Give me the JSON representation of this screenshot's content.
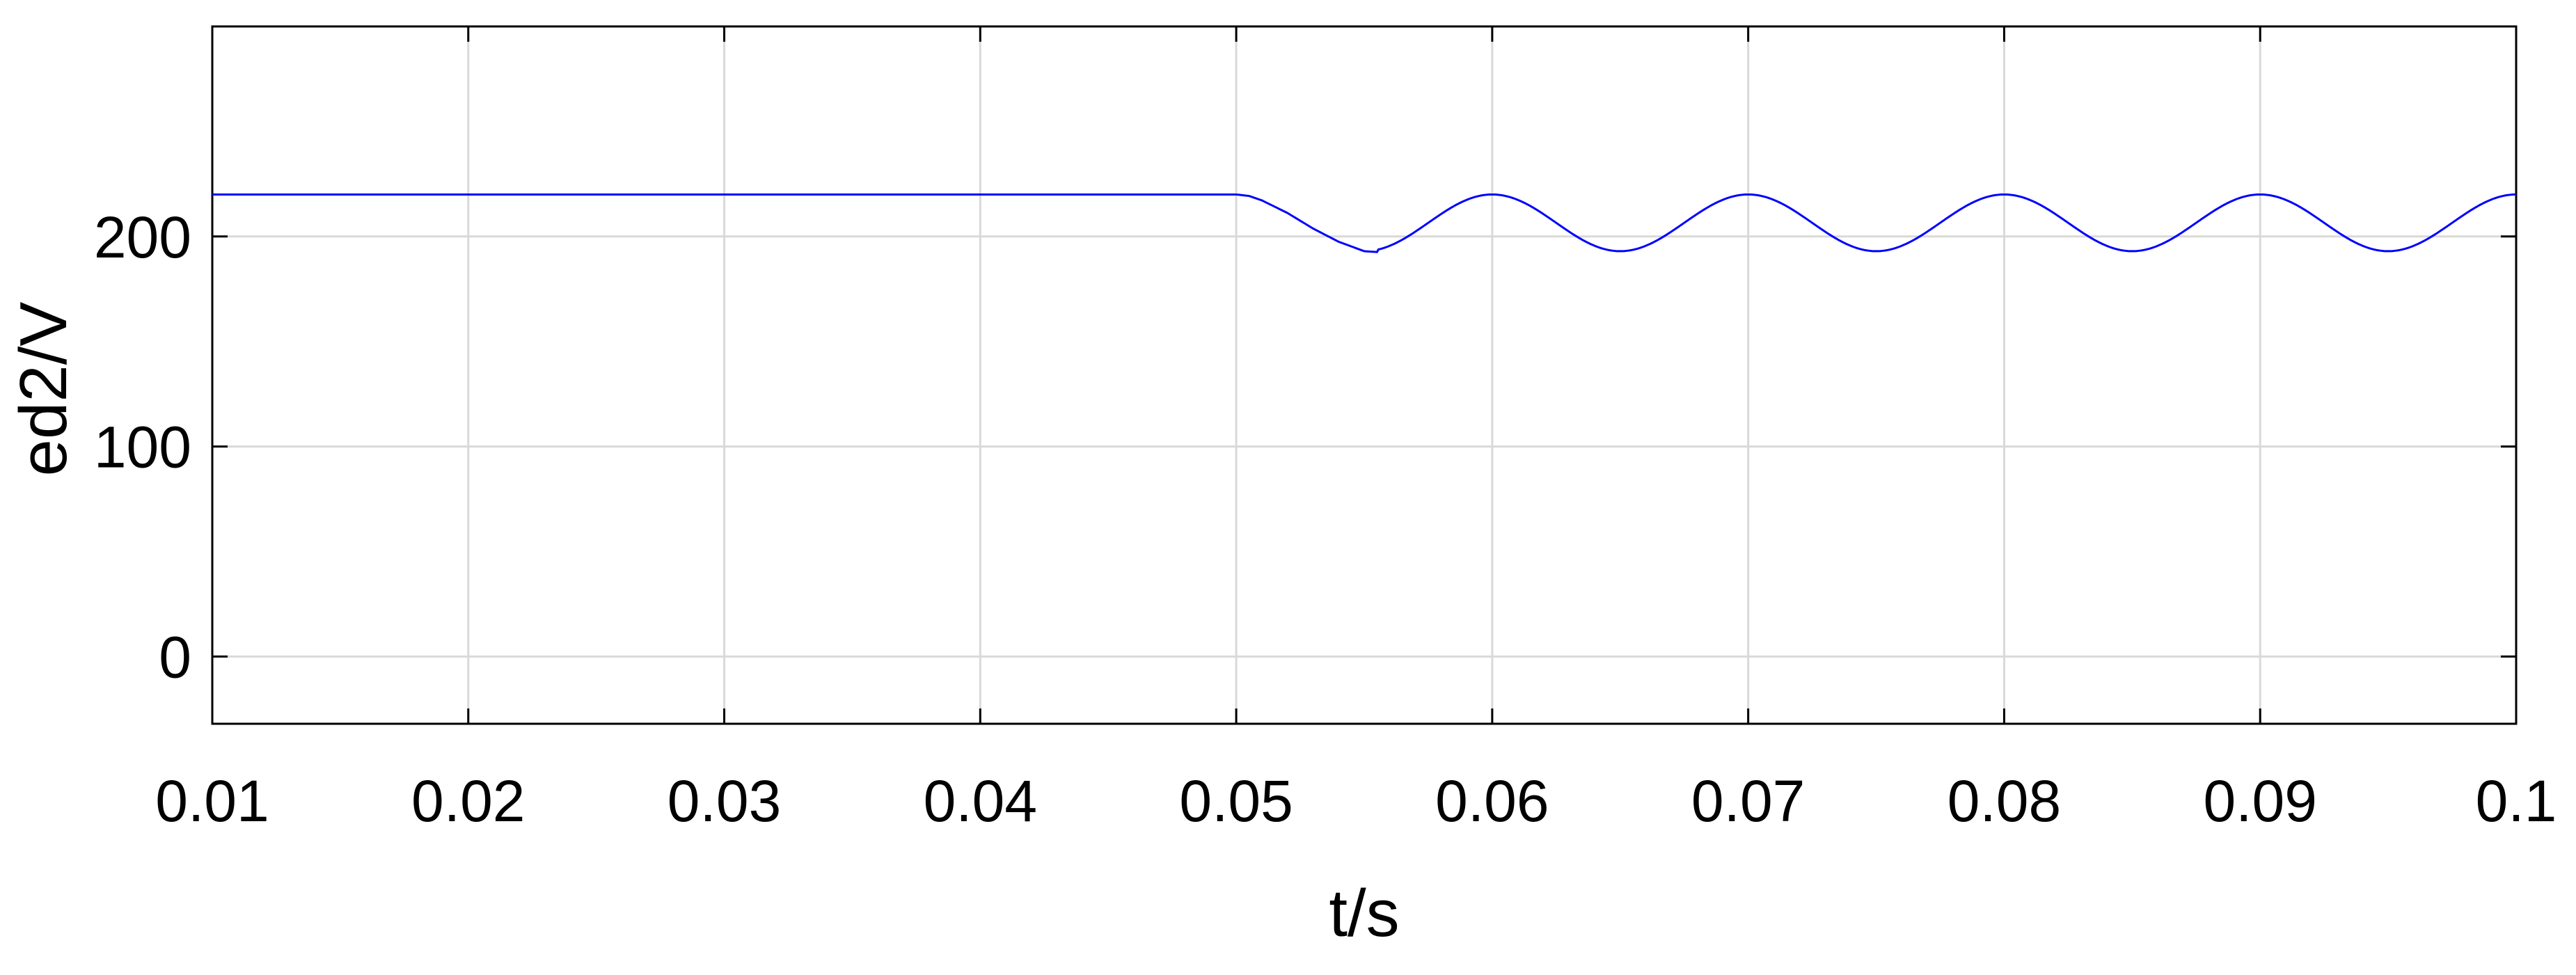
{
  "chart_data": {
    "type": "line",
    "title": "",
    "xlabel": "t/s",
    "ylabel": "ed2/V",
    "xlim": [
      0.01,
      0.1
    ],
    "ylim": [
      -32,
      300
    ],
    "x_ticks": [
      0.01,
      0.02,
      0.03,
      0.04,
      0.05,
      0.06,
      0.07,
      0.08,
      0.09,
      0.1
    ],
    "x_tick_labels": [
      "0.01",
      "0.02",
      "0.03",
      "0.04",
      "0.05",
      "0.06",
      "0.07",
      "0.08",
      "0.09",
      "0.1"
    ],
    "y_ticks": [
      0,
      100,
      200
    ],
    "y_tick_labels": [
      "0",
      "100",
      "200"
    ],
    "grid": true,
    "colors": {
      "line": "#0000ff",
      "grid": "#d9d9d9",
      "axes": "#000000"
    },
    "series": [
      {
        "color": "#0000ff",
        "points": [
          [
            0.01,
            220
          ],
          [
            0.02,
            220
          ],
          [
            0.03,
            220
          ],
          [
            0.04,
            220
          ],
          [
            0.05,
            220
          ],
          [
            0.0505,
            219.3
          ],
          [
            0.051,
            217.2
          ],
          [
            0.052,
            211.2
          ],
          [
            0.053,
            203.8
          ],
          [
            0.054,
            197.5
          ],
          [
            0.055,
            193
          ],
          [
            0.056,
            192.2
          ],
          [
            0.057,
            196.6
          ],
          [
            0.058,
            205
          ],
          [
            0.059,
            214.8
          ],
          [
            0.06,
            220
          ],
          [
            0.0625,
            213
          ],
          [
            0.065,
            193
          ],
          [
            0.0675,
            200
          ],
          [
            0.07,
            220
          ],
          [
            0.0725,
            213
          ],
          [
            0.075,
            193
          ],
          [
            0.0775,
            200
          ],
          [
            0.08,
            220
          ],
          [
            0.0825,
            213
          ],
          [
            0.085,
            193
          ],
          [
            0.0875,
            200
          ],
          [
            0.09,
            220
          ],
          [
            0.0925,
            213
          ],
          [
            0.095,
            193
          ],
          [
            0.0975,
            200
          ],
          [
            0.1,
            220
          ]
        ]
      }
    ]
  }
}
